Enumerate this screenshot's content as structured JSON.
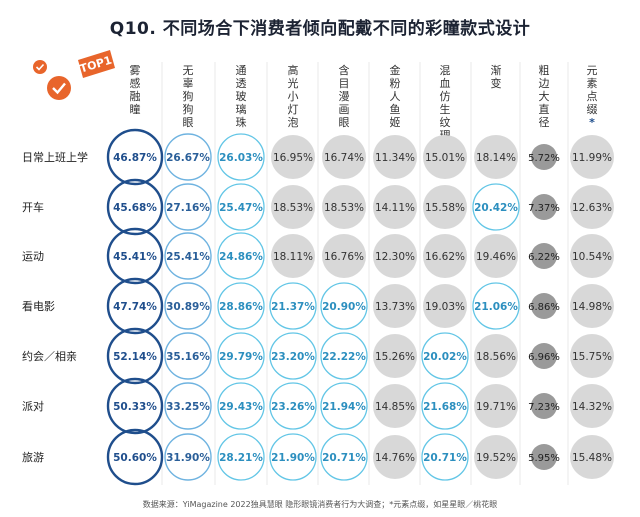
{
  "title": "Q10. 不同场合下消费者倾向配戴不同的彩瞳款式设计",
  "badge": "TOP1",
  "footer": "数据来源：YiMagazine 2022独具慧眼 隐形眼镜消费者行为大调查；*元素点缀，如星星眼／桃花眼",
  "colors": {
    "dark_blue": "#1f4e8c",
    "mid_blue": "#6fb3e0",
    "light_blue": "#63c6e6",
    "gray_light": "#d8d8d8",
    "gray_dark": "#9a9a9a",
    "orange": "#e8652b"
  },
  "chart_data": {
    "type": "table",
    "title": "Q10. 不同场合下消费者倾向配戴不同的彩瞳款式设计",
    "columns": [
      "雾感融瞳",
      "无辜狗狗眼",
      "通透玻璃珠",
      "高光小灯泡",
      "含目漫画眼",
      "金粉人鱼姬",
      "混血仿生纹理",
      "渐变",
      "粗边大直径",
      "元素点缀*"
    ],
    "rows": [
      "日常上班上学",
      "开车",
      "运动",
      "看电影",
      "约会／相亲",
      "派对",
      "旅游"
    ],
    "values": [
      [
        "46.87%",
        "26.67%",
        "26.03%",
        "16.95%",
        "16.74%",
        "11.34%",
        "15.01%",
        "18.14%",
        "5.72%",
        "11.99%"
      ],
      [
        "45.68%",
        "27.16%",
        "25.47%",
        "18.53%",
        "18.53%",
        "14.11%",
        "15.58%",
        "20.42%",
        "7.37%",
        "12.63%"
      ],
      [
        "45.41%",
        "25.41%",
        "24.86%",
        "18.11%",
        "16.76%",
        "12.30%",
        "16.62%",
        "19.46%",
        "6.22%",
        "10.54%"
      ],
      [
        "47.74%",
        "30.89%",
        "28.86%",
        "21.37%",
        "20.90%",
        "13.73%",
        "19.03%",
        "21.06%",
        "6.86%",
        "14.98%"
      ],
      [
        "52.14%",
        "35.16%",
        "29.79%",
        "23.20%",
        "22.22%",
        "15.26%",
        "20.02%",
        "18.56%",
        "6.96%",
        "15.75%"
      ],
      [
        "50.33%",
        "33.25%",
        "29.43%",
        "23.26%",
        "21.94%",
        "14.85%",
        "21.68%",
        "19.71%",
        "7.23%",
        "14.32%"
      ],
      [
        "50.60%",
        "31.90%",
        "28.21%",
        "21.90%",
        "20.71%",
        "14.76%",
        "20.71%",
        "19.52%",
        "5.95%",
        "15.48%"
      ]
    ],
    "styles": [
      [
        "dark",
        "mid",
        "light",
        "gray",
        "gray",
        "gray",
        "gray",
        "gray",
        "grayd",
        "gray"
      ],
      [
        "dark",
        "mid",
        "light",
        "gray",
        "gray",
        "gray",
        "gray",
        "light",
        "grayd",
        "gray"
      ],
      [
        "dark",
        "mid",
        "light",
        "gray",
        "gray",
        "gray",
        "gray",
        "gray",
        "grayd",
        "gray"
      ],
      [
        "dark",
        "mid",
        "light",
        "light",
        "light",
        "gray",
        "gray",
        "light",
        "grayd",
        "gray"
      ],
      [
        "dark",
        "mid",
        "light",
        "light",
        "light",
        "gray",
        "light",
        "gray",
        "grayd",
        "gray"
      ],
      [
        "dark",
        "mid",
        "light",
        "light",
        "light",
        "gray",
        "light",
        "gray",
        "grayd",
        "gray"
      ],
      [
        "dark",
        "mid",
        "light",
        "light",
        "light",
        "gray",
        "light",
        "gray",
        "grayd",
        "gray"
      ]
    ]
  }
}
